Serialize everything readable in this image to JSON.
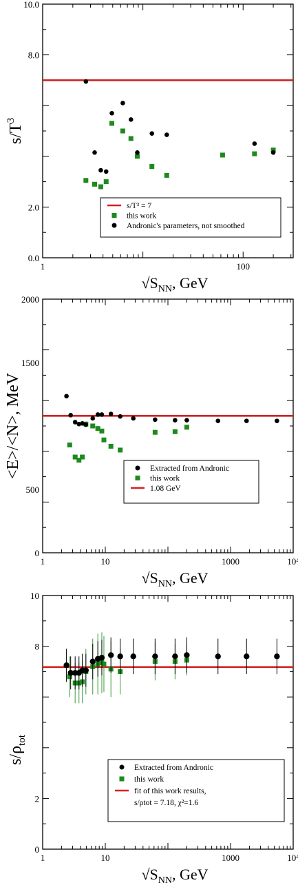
{
  "chart_data": [
    {
      "type": "scatter",
      "xscale": "log",
      "xlim": [
        1,
        316
      ],
      "ylim": [
        0,
        10
      ],
      "xticks": [
        {
          "v": 1,
          "label": "1"
        },
        {
          "v": 100,
          "label": "100"
        }
      ],
      "yticks": [
        {
          "v": 0,
          "label": "0.0"
        },
        {
          "v": 2,
          "label": "2.0"
        },
        {
          "v": 8,
          "label": "8.0"
        },
        {
          "v": 10,
          "label": "10.0"
        }
      ],
      "xlabel": "√S",
      "xlabel_sub": "NN",
      "xlabel_unit": ", GeV",
      "ylabel": "s/T",
      "ylabel_sup": "3",
      "hline": 7,
      "series": [
        {
          "name": "this work",
          "marker": "square",
          "color": "#1e8a1e",
          "x": [
            2.7,
            3.3,
            3.8,
            4.3,
            4.9,
            6.3,
            7.6,
            8.8,
            12.3,
            17.3,
            62.4,
            130,
            200
          ],
          "y": [
            3.05,
            2.9,
            2.8,
            3.0,
            5.3,
            5.0,
            4.7,
            4.0,
            3.6,
            3.25,
            4.05,
            4.1,
            4.25
          ]
        },
        {
          "name": "Andronic's parameters, not smoothed",
          "marker": "circle",
          "color": "#000000",
          "x": [
            2.7,
            3.3,
            3.8,
            4.3,
            4.9,
            6.3,
            7.6,
            8.8,
            12.3,
            17.3,
            130,
            200
          ],
          "y": [
            6.95,
            4.15,
            3.45,
            3.4,
            5.7,
            6.1,
            5.45,
            4.15,
            4.9,
            4.85,
            4.5,
            4.15
          ]
        }
      ],
      "legend": {
        "placement": "bottom-right",
        "entries": [
          {
            "label": "s/T³ = 7",
            "kind": "line"
          },
          {
            "label": "this work",
            "kind": "square"
          },
          {
            "label": "Andronic's parameters, not smoothed",
            "kind": "circle"
          }
        ]
      }
    },
    {
      "type": "scatter",
      "xscale": "log",
      "xlim": [
        1,
        10000
      ],
      "ylim": [
        0,
        2000
      ],
      "xticks": [
        {
          "v": 1,
          "label": "1"
        },
        {
          "v": 10,
          "label": "10"
        },
        {
          "v": 1000,
          "label": "1000"
        },
        {
          "v": 10000,
          "label": "10⁴"
        }
      ],
      "yticks": [
        {
          "v": 0,
          "label": "0"
        },
        {
          "v": 500,
          "label": "500"
        },
        {
          "v": 1500,
          "label": "1500"
        },
        {
          "v": 2000,
          "label": "2000"
        }
      ],
      "xlabel": "√S",
      "xlabel_sub": "NN",
      "xlabel_unit": ", GeV",
      "ylabel": "<E>/<N>, MeV",
      "hline": 1080,
      "series": [
        {
          "name": "Extracted from Andronic",
          "marker": "circle",
          "color": "#000000",
          "x": [
            2.4,
            2.8,
            3.3,
            3.8,
            4.3,
            4.9,
            6.3,
            7.6,
            8.8,
            12.3,
            17.3,
            28,
            62.4,
            130,
            200,
            630,
            1800,
            5500
          ],
          "y": [
            1235,
            1085,
            1030,
            1015,
            1020,
            1010,
            1060,
            1090,
            1090,
            1095,
            1075,
            1060,
            1050,
            1045,
            1045,
            1040,
            1040,
            1040
          ]
        },
        {
          "name": "this work",
          "marker": "square",
          "color": "#1e8a1e",
          "x": [
            2.7,
            3.3,
            3.8,
            4.3,
            4.9,
            6.3,
            7.6,
            8.8,
            9.5,
            12.3,
            17.3,
            62.4,
            130,
            200
          ],
          "y": [
            850,
            755,
            730,
            755,
            1015,
            1000,
            980,
            960,
            890,
            840,
            810,
            950,
            955,
            990
          ]
        }
      ],
      "legend": {
        "placement": "bottom-right",
        "entries": [
          {
            "label": "Extracted from Andronic",
            "kind": "circle"
          },
          {
            "label": "this work",
            "kind": "square"
          },
          {
            "label": "1.08 GeV",
            "kind": "line"
          }
        ]
      }
    },
    {
      "type": "scatter",
      "xscale": "log",
      "xlim": [
        1,
        10000
      ],
      "ylim": [
        0,
        10
      ],
      "xticks": [
        {
          "v": 1,
          "label": "1"
        },
        {
          "v": 10,
          "label": "10"
        },
        {
          "v": 1000,
          "label": "1000"
        },
        {
          "v": 10000,
          "label": "10⁴"
        }
      ],
      "yticks": [
        {
          "v": 0,
          "label": "0"
        },
        {
          "v": 2,
          "label": "2"
        },
        {
          "v": 8,
          "label": "8"
        },
        {
          "v": 10,
          "label": "10"
        }
      ],
      "xlabel": "√S",
      "xlabel_sub": "NN",
      "xlabel_unit": ", GeV",
      "ylabel": "s/ρ",
      "ylabel_sub": "tot",
      "hline": 7.18,
      "series": [
        {
          "name": "Extracted from Andronic",
          "marker": "circle",
          "color": "#000000",
          "x": [
            2.4,
            2.8,
            3.3,
            3.8,
            4.3,
            4.9,
            6.3,
            7.6,
            8.8,
            12.3,
            17.3,
            28,
            62.4,
            130,
            200,
            630,
            1800,
            5500
          ],
          "y": [
            7.25,
            6.95,
            6.95,
            6.95,
            7.05,
            7.05,
            7.4,
            7.5,
            7.55,
            7.65,
            7.6,
            7.6,
            7.6,
            7.6,
            7.65,
            7.6,
            7.6,
            7.6
          ],
          "err": [
            0.65,
            0.65,
            0.65,
            0.65,
            0.65,
            0.65,
            0.7,
            0.7,
            0.7,
            0.7,
            0.7,
            0.7,
            0.7,
            0.7,
            0.7,
            0.7,
            0.7,
            0.7
          ]
        },
        {
          "name": "this work",
          "marker": "square",
          "color": "#1e8a1e",
          "x": [
            2.7,
            3.3,
            3.8,
            4.3,
            4.9,
            6.3,
            7.6,
            8.8,
            9.5,
            12.3,
            17.3,
            62.4,
            130,
            200
          ],
          "y": [
            6.8,
            6.55,
            6.55,
            6.6,
            7.0,
            7.2,
            7.3,
            7.35,
            7.3,
            7.1,
            7.0,
            7.4,
            7.4,
            7.45
          ],
          "err": [
            0.8,
            0.8,
            0.8,
            0.85,
            0.9,
            1.1,
            1.2,
            1.2,
            1.1,
            1.1,
            0.9,
            0.75,
            0.7,
            0.6
          ]
        }
      ],
      "legend": {
        "placement": "bottom-right",
        "entries": [
          {
            "label": "Extracted from Andronic",
            "kind": "circle"
          },
          {
            "label": "this work",
            "kind": "square"
          },
          {
            "label": "fit of this work results,",
            "kind": "line"
          },
          {
            "label": "s/ρtot = 7.18, χ²=1.6",
            "kind": "none"
          }
        ]
      }
    }
  ]
}
